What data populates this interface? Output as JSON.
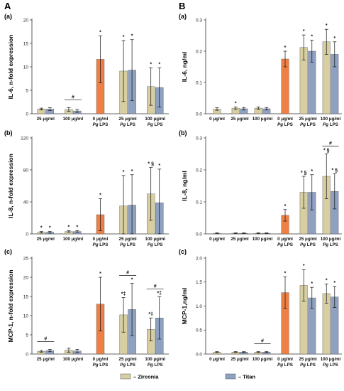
{
  "figure": {
    "panel_A": "A",
    "panel_B": "B",
    "legend": [
      {
        "label": "– Zirconia",
        "color": "#d6ceA0"
      },
      {
        "label": "– Titan",
        "color": "#8fa0c0"
      }
    ]
  },
  "colors": {
    "zirconia": "#d7cfa2",
    "titan": "#8fa1c1",
    "lps": "#ee7f45",
    "axis": "#333333"
  },
  "chart_data": [
    {
      "id": "A-a",
      "panel": "A",
      "sub": "(a)",
      "type": "bar",
      "ylabel": "IL-6, n-fold expression",
      "ylim": [
        0,
        20
      ],
      "yticks": [
        0,
        5,
        10,
        15,
        20
      ],
      "categories": [
        [
          "25 μg/ml"
        ],
        [
          "100 μg/ml"
        ],
        [
          "0 μg/ml",
          "Pg LPS"
        ],
        [
          "25 μg/ml",
          "Pg LPS"
        ],
        [
          "100 μg/ml",
          "Pg LPS"
        ]
      ],
      "show_cat": [
        true,
        true,
        false,
        true,
        true
      ],
      "lps_bar": {
        "value": 11.6,
        "err": 5.0,
        "mark": "*"
      },
      "series": [
        {
          "name": "– Zirconia",
          "values": [
            1.0,
            0.9,
            null,
            9.1,
            5.8
          ],
          "errors": [
            0.2,
            0.4,
            null,
            6.5,
            4.0
          ],
          "marks": [
            "",
            "",
            "",
            "*",
            "*"
          ]
        },
        {
          "name": "– Titan",
          "values": [
            1.0,
            0.6,
            null,
            9.3,
            5.6
          ],
          "errors": [
            0.3,
            0.3,
            null,
            6.5,
            4.2
          ],
          "marks": [
            "",
            "",
            "",
            "*",
            "*"
          ]
        }
      ],
      "brackets": [
        {
          "group": 1,
          "label": "#"
        }
      ]
    },
    {
      "id": "A-b",
      "panel": "A",
      "sub": "(b)",
      "type": "bar",
      "ylabel": "IL-8, n-fold expression",
      "ylim": [
        0,
        120
      ],
      "yticks": [
        0,
        40,
        80,
        120
      ],
      "categories": [
        [
          "25 μg/ml"
        ],
        [
          "100 μg/ml"
        ],
        [
          "0 μg/ml",
          "Pg LPS"
        ],
        [
          "25 μg/ml",
          "Pg LPS"
        ],
        [
          "100 μg/ml",
          "Pg LPS"
        ]
      ],
      "show_cat": [
        true,
        true,
        false,
        true,
        true
      ],
      "lps_bar": {
        "value": 24,
        "err": 20,
        "mark": "*"
      },
      "series": [
        {
          "name": "– Zirconia",
          "values": [
            2,
            3,
            null,
            35,
            50
          ],
          "errors": [
            1,
            1,
            null,
            38,
            33
          ],
          "marks": [
            "*",
            "*",
            "",
            "*",
            "* §"
          ]
        },
        {
          "name": "– Titan",
          "values": [
            2,
            3,
            null,
            36,
            39
          ],
          "errors": [
            1,
            1,
            null,
            38,
            42
          ],
          "marks": [
            "*",
            "*",
            "",
            "*",
            "*"
          ]
        }
      ],
      "brackets": []
    },
    {
      "id": "A-c",
      "panel": "A",
      "sub": "(c)",
      "type": "bar",
      "ylabel": "MCP-1, n-fold expression",
      "ylim": [
        0,
        25
      ],
      "yticks": [
        0,
        5,
        10,
        15,
        20,
        25
      ],
      "categories": [
        [
          "25 μg/ml"
        ],
        [
          "100 μg/ml"
        ],
        [
          "0 μg/ml",
          "Pg LPS"
        ],
        [
          "25 μg/ml",
          "Pg LPS"
        ],
        [
          "100 μg/ml",
          "Pg LPS"
        ]
      ],
      "show_cat": [
        true,
        true,
        false,
        true,
        true
      ],
      "lps_bar": {
        "value": 13,
        "err": 7,
        "mark": "*"
      },
      "series": [
        {
          "name": "– Zirconia",
          "values": [
            0.7,
            1.0,
            null,
            10.2,
            6.4
          ],
          "errors": [
            0.2,
            0.5,
            null,
            4.5,
            3.0
          ],
          "marks": [
            "",
            "",
            "",
            "*‡",
            "*‡"
          ]
        },
        {
          "name": "– Titan",
          "values": [
            0.9,
            0.8,
            null,
            11.6,
            9.4
          ],
          "errors": [
            0.3,
            0.4,
            null,
            6.8,
            5.5
          ],
          "marks": [
            "",
            "",
            "",
            "*",
            "*‡"
          ]
        }
      ],
      "brackets": [
        {
          "group": 0,
          "label": "#"
        },
        {
          "group": 3,
          "label": "#"
        },
        {
          "group": 4,
          "label": "#"
        }
      ]
    },
    {
      "id": "B-a",
      "panel": "B",
      "sub": "(a)",
      "type": "bar",
      "ylabel": "IL-6, ng/ml",
      "ylim": [
        0,
        0.3
      ],
      "yticks": [
        0,
        0.1,
        0.2,
        0.3
      ],
      "categories": [
        [
          "0 μg/ml"
        ],
        [
          "25 μg/ml"
        ],
        [
          "100 μg/ml"
        ],
        [
          "0 μg/ml",
          "Pg LPS"
        ],
        [
          "25 μg/ml",
          "Pg LPS"
        ],
        [
          "100 μg/ml",
          "Pg LPS"
        ]
      ],
      "show_cat": [
        true,
        true,
        true,
        true,
        true,
        true
      ],
      "lps_bar": {
        "value": 0.175,
        "err": 0.025,
        "mark": "*"
      },
      "control_bar": {
        "value": 0.015,
        "err": 0.004
      },
      "series": [
        {
          "name": "– Zirconia",
          "values": [
            null,
            0.018,
            0.018,
            null,
            0.212,
            0.23
          ],
          "errors": [
            null,
            0.004,
            0.004,
            null,
            0.04,
            0.04
          ],
          "marks": [
            "",
            "*",
            "",
            "",
            "*",
            "*"
          ]
        },
        {
          "name": "– Titan",
          "values": [
            null,
            0.016,
            0.016,
            null,
            0.2,
            0.19
          ],
          "errors": [
            null,
            0.004,
            0.004,
            null,
            0.035,
            0.04
          ],
          "marks": [
            "",
            "",
            "",
            "",
            "*",
            "*"
          ]
        }
      ],
      "brackets": []
    },
    {
      "id": "B-b",
      "panel": "B",
      "sub": "(b)",
      "type": "bar",
      "ylabel": "IL-8, ng/ml",
      "ylim": [
        0,
        0.3
      ],
      "yticks": [
        0,
        0.1,
        0.2,
        0.3
      ],
      "categories": [
        [
          "0 μg/ml"
        ],
        [
          "25 μg/ml"
        ],
        [
          "100 μg/ml"
        ],
        [
          "0 μg/ml",
          "Pg LPS"
        ],
        [
          "25 μg/ml",
          "Pg LPS"
        ],
        [
          "100 μg/ml",
          "Pg LPS"
        ]
      ],
      "show_cat": [
        true,
        true,
        true,
        true,
        true,
        true
      ],
      "lps_bar": {
        "value": 0.058,
        "err": 0.018,
        "mark": "*"
      },
      "control_bar": {
        "value": 0.002,
        "err": 0.001
      },
      "series": [
        {
          "name": "– Zirconia",
          "values": [
            null,
            0.002,
            0.002,
            null,
            0.13,
            0.18
          ],
          "errors": [
            null,
            0.001,
            0.001,
            null,
            0.05,
            0.07
          ],
          "marks": [
            "",
            "",
            "",
            "",
            "* §",
            "* §"
          ]
        },
        {
          "name": "– Titan",
          "values": [
            null,
            0.002,
            0.002,
            null,
            0.13,
            0.133
          ],
          "errors": [
            null,
            0.001,
            0.001,
            null,
            0.055,
            0.055
          ],
          "marks": [
            "",
            "",
            "",
            "",
            "*",
            "* §"
          ]
        }
      ],
      "brackets": [
        {
          "group": 5,
          "label": "#"
        }
      ]
    },
    {
      "id": "B-c",
      "panel": "B",
      "sub": "(c)",
      "type": "bar",
      "ylabel": "MCP-1,ng/ml",
      "ylim": [
        0,
        2.0
      ],
      "yticks": [
        0,
        0.5,
        1.0,
        1.5,
        2.0
      ],
      "categories": [
        [
          "0 μg/ml"
        ],
        [
          "25 μg/ml"
        ],
        [
          "100 μg/ml"
        ],
        [
          "0 μg/ml",
          "Pg LPS"
        ],
        [
          "25 μg/ml",
          "Pg LPS"
        ],
        [
          "100 μg/ml",
          "Pg LPS"
        ]
      ],
      "show_cat": [
        true,
        true,
        true,
        true,
        true,
        true
      ],
      "lps_bar": {
        "value": 1.28,
        "err": 0.33,
        "mark": "*"
      },
      "control_bar": {
        "value": 0.04,
        "err": 0.01
      },
      "series": [
        {
          "name": "– Zirconia",
          "values": [
            null,
            0.04,
            0.04,
            null,
            1.43,
            1.26
          ],
          "errors": [
            null,
            0.01,
            0.01,
            null,
            0.33,
            0.2
          ],
          "marks": [
            "",
            "",
            "",
            "",
            "*",
            "*"
          ]
        },
        {
          "name": "– Titan",
          "values": [
            null,
            0.04,
            0.04,
            null,
            1.17,
            1.19
          ],
          "errors": [
            null,
            0.01,
            0.01,
            null,
            0.22,
            0.22
          ],
          "marks": [
            "",
            "",
            "",
            "",
            "*",
            "*"
          ]
        }
      ],
      "brackets": [
        {
          "group": 2,
          "label": "#"
        }
      ]
    }
  ]
}
